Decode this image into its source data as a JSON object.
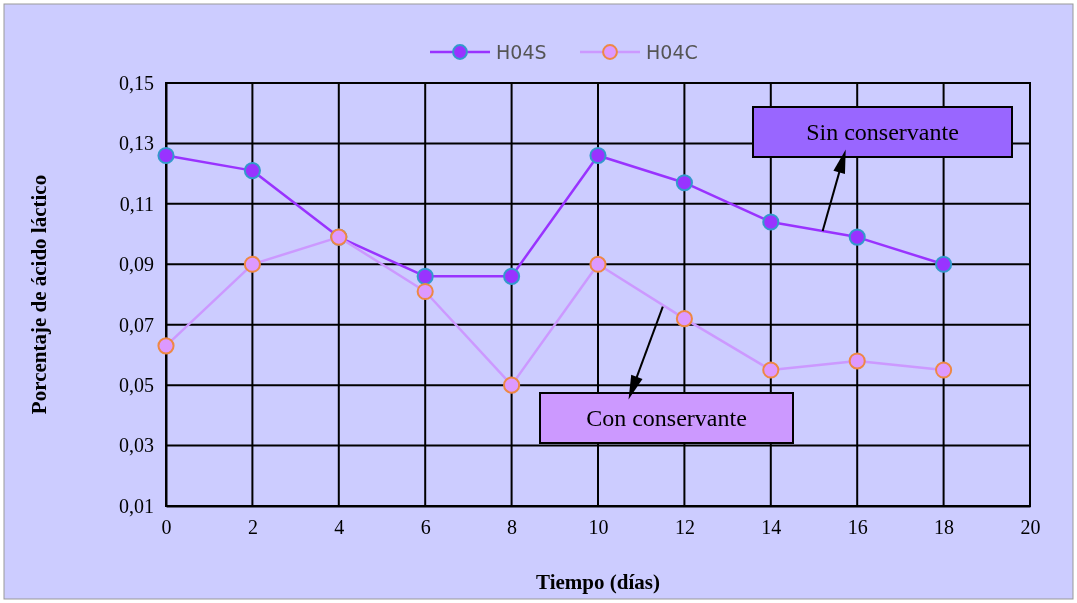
{
  "chart_data": {
    "type": "line",
    "xlabel": "Tiempo (días)",
    "ylabel": "Porcentaje de ácido láctico",
    "x": [
      0,
      2,
      4,
      6,
      8,
      10,
      12,
      14,
      16,
      18
    ],
    "series": [
      {
        "name": "H04S",
        "color": "#9933ff",
        "values": [
          0.126,
          0.121,
          0.099,
          0.086,
          0.086,
          0.126,
          0.117,
          0.104,
          0.099,
          0.09
        ]
      },
      {
        "name": "H04C",
        "color": "#cc99ff",
        "values": [
          0.063,
          0.09,
          0.099,
          0.081,
          0.05,
          0.09,
          0.072,
          0.055,
          0.058,
          0.055
        ]
      }
    ],
    "xlim": [
      0,
      20
    ],
    "xticks": [
      0,
      2,
      4,
      6,
      8,
      10,
      12,
      14,
      16,
      18,
      20
    ],
    "ylim": [
      0.01,
      0.15
    ],
    "yticks": [
      {
        "value": 0.01,
        "label": "0,01"
      },
      {
        "value": 0.03,
        "label": "0,03"
      },
      {
        "value": 0.05,
        "label": "0,05"
      },
      {
        "value": 0.07,
        "label": "0,07"
      },
      {
        "value": 0.09,
        "label": "0,09"
      },
      {
        "value": 0.11,
        "label": "0,11"
      },
      {
        "value": 0.13,
        "label": "0,13"
      },
      {
        "value": 0.15,
        "label": "0,15"
      }
    ],
    "grid": true,
    "legend": "top",
    "marker": "circle",
    "line_style": "solid",
    "annotations": [
      {
        "text": "Sin conservante",
        "x": 15.2,
        "y": 0.101
      },
      {
        "text": "Con conservante",
        "x": 11.5,
        "y": 0.076
      }
    ]
  }
}
